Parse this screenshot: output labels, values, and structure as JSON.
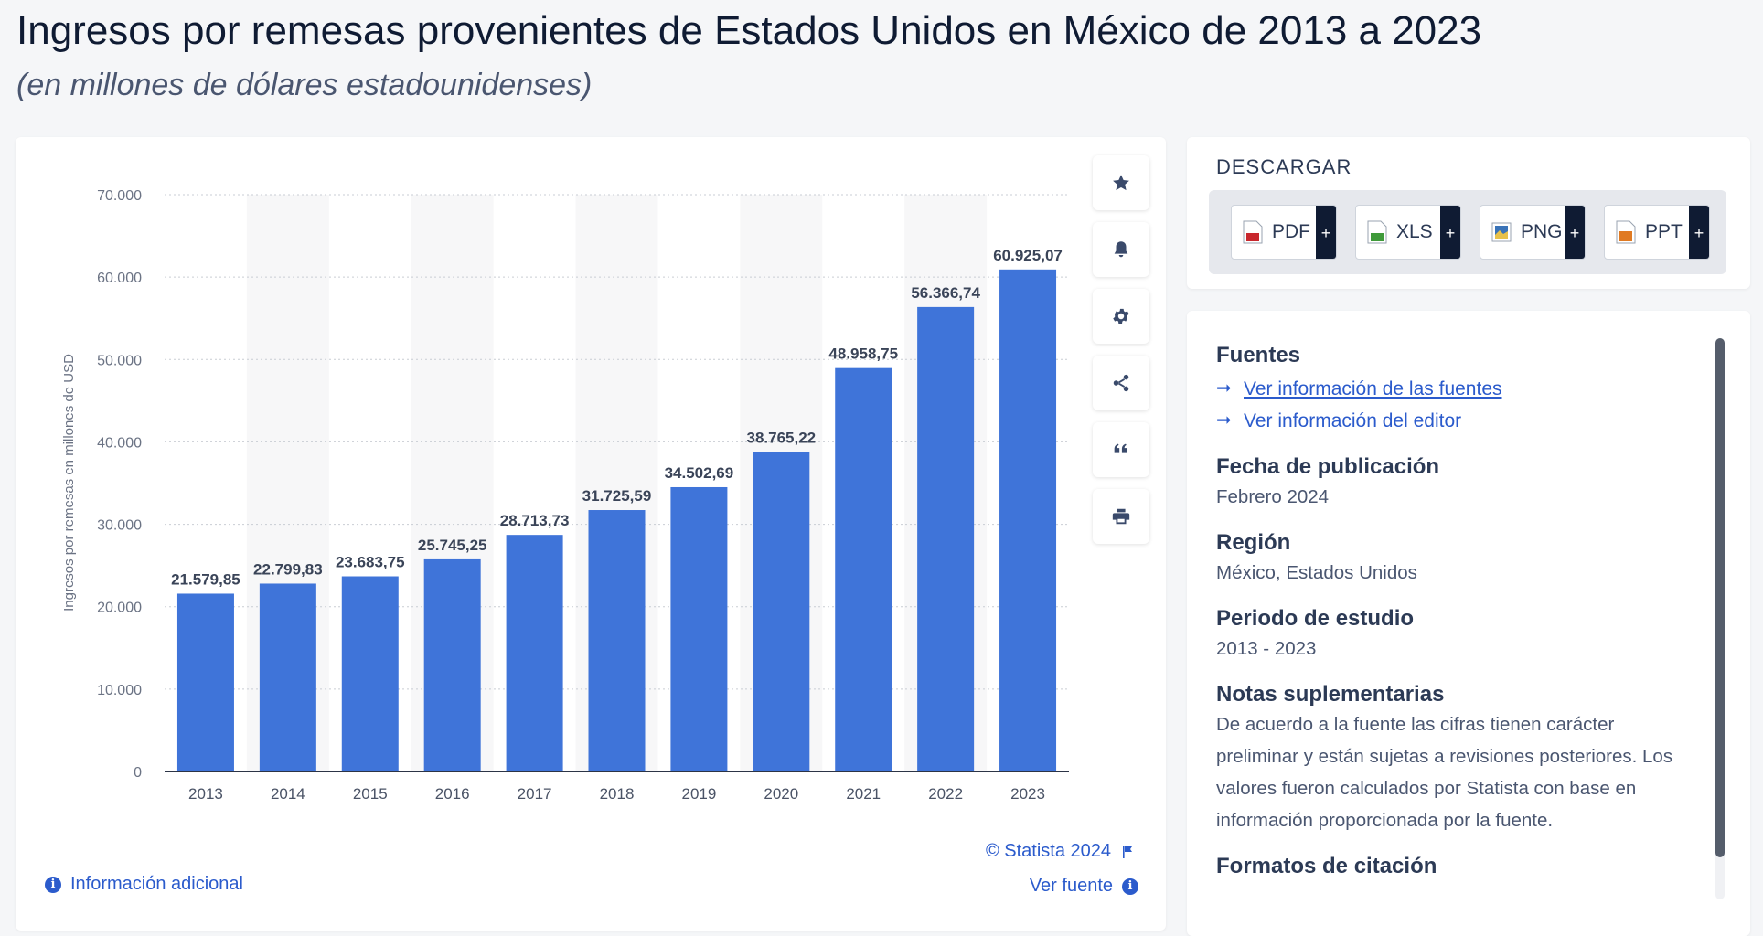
{
  "header": {
    "title": "Ingresos por remesas provenientes de Estados Unidos en México de 2013 a 2023",
    "subtitle": "(en millones de dólares estadounidenses)"
  },
  "chart_data": {
    "type": "bar",
    "categories": [
      "2013",
      "2014",
      "2015",
      "2016",
      "2017",
      "2018",
      "2019",
      "2020",
      "2021",
      "2022",
      "2023"
    ],
    "values": [
      21579.85,
      22799.83,
      23683.75,
      25745.25,
      28713.73,
      31725.59,
      34502.69,
      38765.22,
      48958.75,
      56366.74,
      60925.07
    ],
    "value_labels": [
      "21.579,85",
      "22.799,83",
      "23.683,75",
      "25.745,25",
      "28.713,73",
      "31.725,59",
      "34.502,69",
      "38.765,22",
      "48.958,75",
      "56.366,74",
      "60.925,07"
    ],
    "ylabel": "Ingresos por remesas en millones de USD",
    "ylim": [
      0,
      70000
    ],
    "yticks": [
      0,
      10000,
      20000,
      30000,
      40000,
      50000,
      60000,
      70000
    ],
    "ytick_labels": [
      "0",
      "10.000",
      "20.000",
      "30.000",
      "40.000",
      "50.000",
      "60.000",
      "70.000"
    ],
    "bar_color": "#3f74d9",
    "grid": true,
    "alternating_band_color": "#f7f7f8"
  },
  "chart_footer": {
    "copyright": "© Statista 2024",
    "additional_info": "Información adicional",
    "view_source": "Ver fuente"
  },
  "toolbar": {
    "items": [
      {
        "name": "star-icon"
      },
      {
        "name": "bell-icon"
      },
      {
        "name": "gear-icon"
      },
      {
        "name": "share-icon"
      },
      {
        "name": "quote-icon"
      },
      {
        "name": "print-icon"
      }
    ]
  },
  "download": {
    "title": "DESCARGAR",
    "buttons": [
      {
        "label": "PDF",
        "color": "#c8272d"
      },
      {
        "label": "XLS",
        "color": "#3f9a3a"
      },
      {
        "label": "PNG",
        "color": "#3a73b8"
      },
      {
        "label": "PPT",
        "color": "#e07a22"
      }
    ],
    "plus": "+"
  },
  "info": {
    "sources_head": "Fuentes",
    "source_link_1": "Ver información de las fuentes",
    "source_link_2": "Ver información del editor",
    "date_head": "Fecha de publicación",
    "date_value": "Febrero 2024",
    "region_head": "Región",
    "region_value": "México, Estados Unidos",
    "period_head": "Periodo de estudio",
    "period_value": "2013 - 2023",
    "notes_head": "Notas suplementarias",
    "notes_value": "De acuerdo a la fuente las cifras tienen carácter preliminar y están sujetas a revisiones posteriores. Los valores fueron calculados por Statista con base en información proporcionada por la fuente.",
    "citation_head": "Formatos de citación"
  }
}
